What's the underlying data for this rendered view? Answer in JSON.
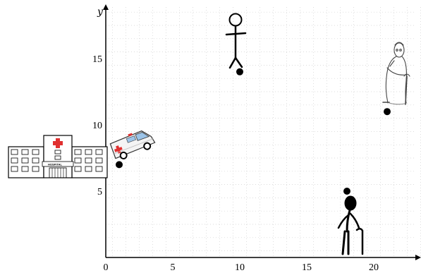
{
  "diagram": {
    "axes": {
      "x_ticks": [
        0,
        5,
        10,
        15,
        20
      ],
      "y_ticks": [
        5,
        10,
        15
      ],
      "y_label": "y",
      "x_range": [
        0,
        23.5
      ],
      "y_range": [
        0,
        19
      ],
      "grid": "dotted light gray"
    },
    "points": [
      {
        "id": "ambulance",
        "x": 1,
        "y": 7
      },
      {
        "id": "stick-person",
        "x": 10,
        "y": 14
      },
      {
        "id": "elderly-woman",
        "x": 21,
        "y": 11
      },
      {
        "id": "elderly-man",
        "x": 18,
        "y": 5
      }
    ],
    "hospital": {
      "sign": "HOSPITAL"
    },
    "colors": {
      "axis": "#000000",
      "grid": "#d0d0d0",
      "point": "#000000",
      "cross": "#e03030"
    }
  }
}
